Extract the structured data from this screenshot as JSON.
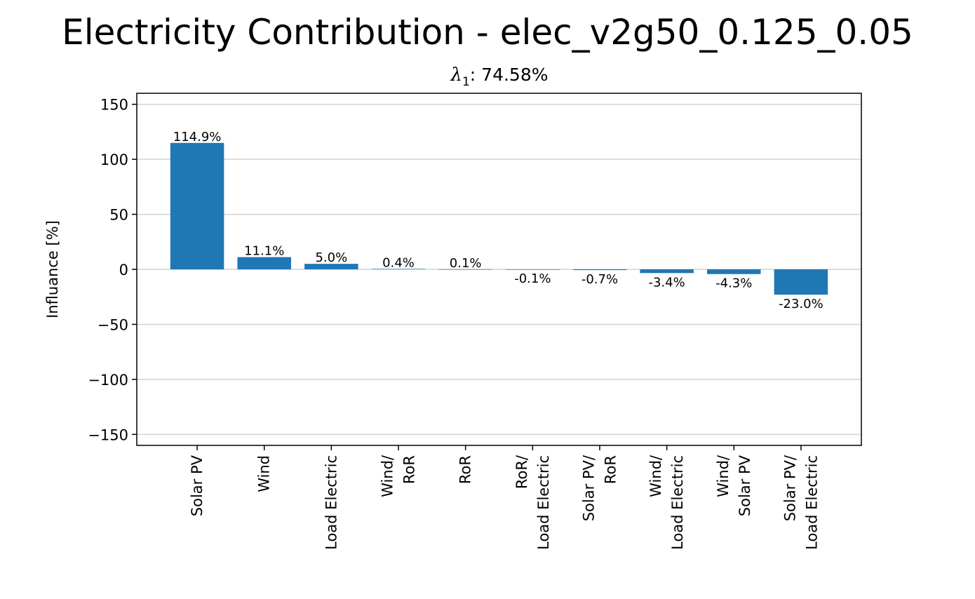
{
  "chart_data": {
    "type": "bar",
    "title": "Electricity Contribution - elec_v2g50_0.125_0.05",
    "subtitle": {
      "symbol": "λ",
      "subscript": "1",
      "text": ": 74.58%"
    },
    "xlabel": "",
    "ylabel": "Influance [%]",
    "ylim": [
      -160,
      160
    ],
    "yticks": [
      150,
      100,
      50,
      0,
      -50,
      -100,
      -150
    ],
    "ytick_labels": [
      "150",
      "100",
      "50",
      "0",
      "−50",
      "−100",
      "−150"
    ],
    "grid": "horizontal",
    "bar_color": "#1f77b4",
    "categories": [
      [
        "Solar PV"
      ],
      [
        "Wind"
      ],
      [
        "Load Electric"
      ],
      [
        "Wind/",
        "RoR"
      ],
      [
        "RoR"
      ],
      [
        "RoR/",
        "Load Electric"
      ],
      [
        "Solar PV/",
        "RoR"
      ],
      [
        "Wind/",
        "Load Electric"
      ],
      [
        "Wind/",
        "Solar PV"
      ],
      [
        "Solar PV/",
        "Load Electric"
      ]
    ],
    "values": [
      114.9,
      11.1,
      5.0,
      0.4,
      0.1,
      -0.1,
      -0.7,
      -3.4,
      -4.3,
      -23.0
    ],
    "value_labels": [
      "114.9%",
      "11.1%",
      "5.0%",
      "0.4%",
      "0.1%",
      "-0.1%",
      "-0.7%",
      "-3.4%",
      "-4.3%",
      "-23.0%"
    ]
  }
}
